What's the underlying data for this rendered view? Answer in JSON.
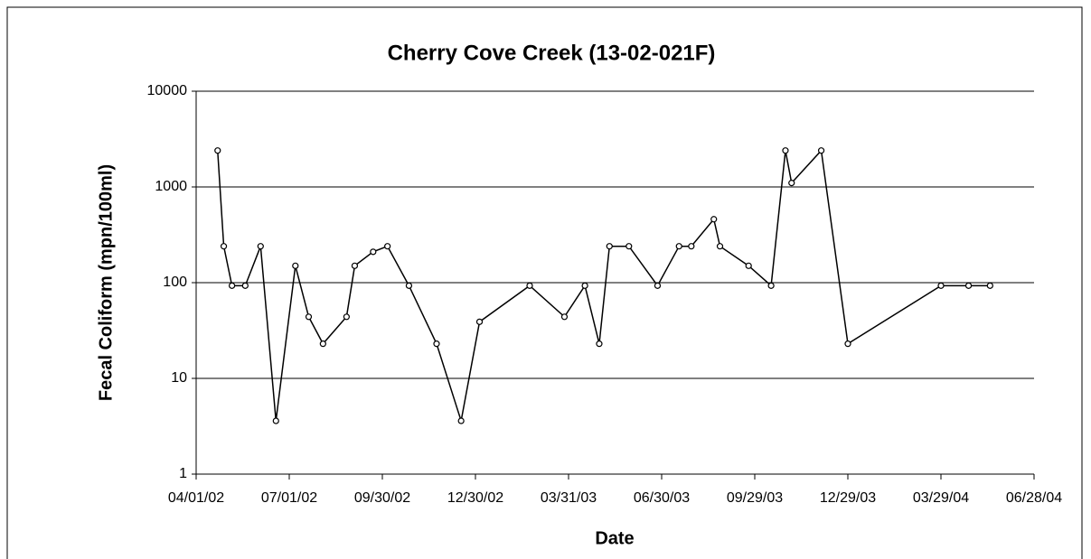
{
  "chart_data": {
    "type": "line",
    "title": "Cherry Cove Creek (13-02-021F)",
    "x_label": "Date",
    "y_label": "Fecal Coliform (mpn/100ml)",
    "x": [
      "04/22/02",
      "04/28/02",
      "05/06/02",
      "05/19/02",
      "06/03/02",
      "06/18/02",
      "07/07/02",
      "07/20/02",
      "08/03/02",
      "08/26/02",
      "09/03/02",
      "09/21/02",
      "10/05/02",
      "10/26/02",
      "11/22/02",
      "12/16/02",
      "01/03/03",
      "02/21/03",
      "03/27/03",
      "04/16/03",
      "04/30/03",
      "05/10/03",
      "05/29/03",
      "06/26/03",
      "07/17/03",
      "07/29/03",
      "08/20/03",
      "08/26/03",
      "09/23/03",
      "10/15/03",
      "10/29/03",
      "11/04/03",
      "12/03/03",
      "12/29/03",
      "03/29/04",
      "04/25/04",
      "05/16/04"
    ],
    "series": [
      {
        "name": "Fecal Coliform",
        "color": "#000000",
        "values": [
          2400,
          240,
          93,
          93,
          240,
          3.6,
          150,
          44,
          23,
          44,
          150,
          210,
          240,
          93,
          23,
          3.6,
          39,
          93,
          44,
          93,
          23,
          240,
          240,
          93,
          240,
          240,
          460,
          240,
          150,
          93,
          2400,
          1100,
          2400,
          23,
          93,
          93,
          93
        ]
      }
    ],
    "xlim": [
      "04/01/02",
      "06/28/04"
    ],
    "xticks": [
      "04/01/02",
      "07/01/02",
      "09/30/02",
      "12/30/02",
      "03/31/03",
      "06/30/03",
      "09/29/03",
      "12/29/03",
      "03/29/04",
      "06/28/04"
    ],
    "ylim": [
      1,
      10000
    ],
    "yticks": [
      1,
      10,
      100,
      1000,
      10000
    ],
    "y_scale": "log",
    "grid": true
  }
}
